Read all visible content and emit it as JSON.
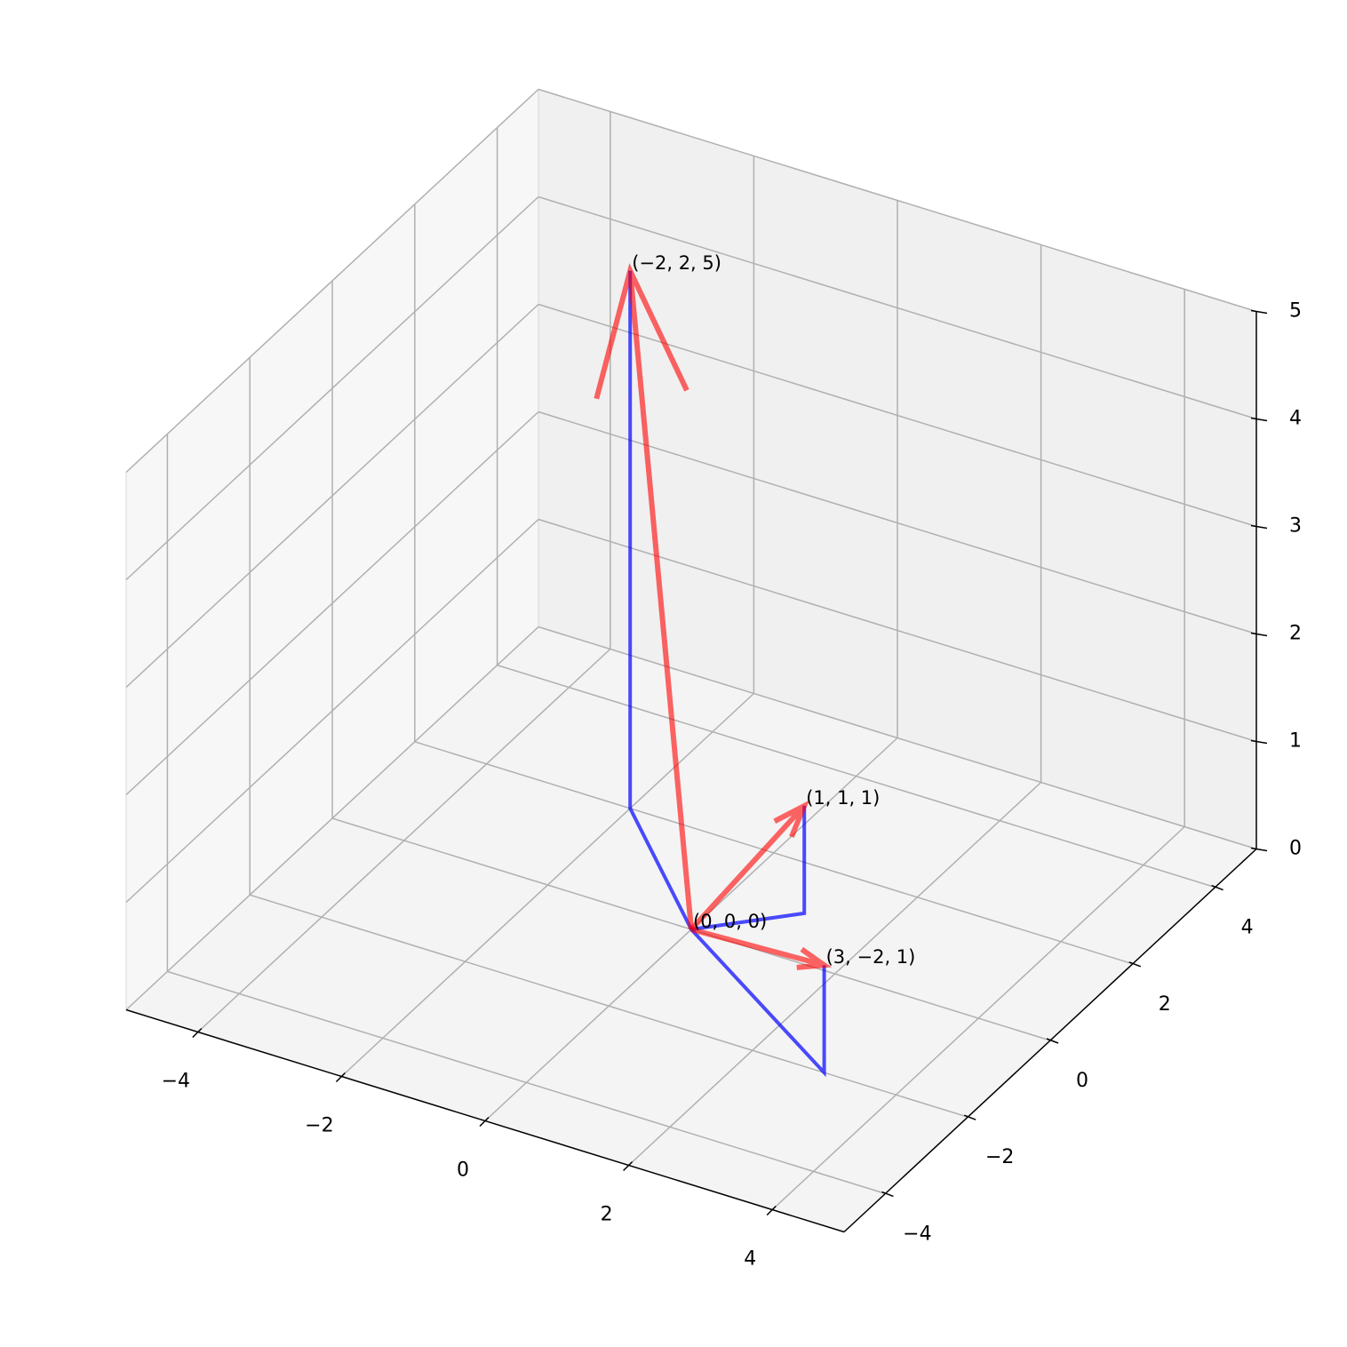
{
  "chart_data": {
    "type": "quiver3d",
    "origin": [
      0,
      0,
      0
    ],
    "origin_label": "(0, 0, 0)",
    "vectors": [
      {
        "x": 1,
        "y": 1,
        "z": 1,
        "label": "(1, 1, 1)"
      },
      {
        "x": 3,
        "y": -2,
        "z": 1,
        "label": "(3, −2, 1)"
      },
      {
        "x": -2,
        "y": 2,
        "z": 5,
        "label": "(−2, 2, 5)"
      }
    ],
    "arrow_color": "red",
    "projection_color": "blue",
    "xlim": [
      -5,
      5
    ],
    "ylim": [
      -5,
      5
    ],
    "zlim": [
      0,
      5
    ],
    "xticks": [
      {
        "value": -4,
        "label": "−4"
      },
      {
        "value": -2,
        "label": "−2"
      },
      0,
      2,
      4
    ],
    "yticks": [
      {
        "value": -4,
        "label": "−4"
      },
      {
        "value": -2,
        "label": "−2"
      },
      0,
      2,
      4
    ],
    "zticks": [
      0,
      1,
      2,
      3,
      4,
      5
    ],
    "grid": true
  }
}
